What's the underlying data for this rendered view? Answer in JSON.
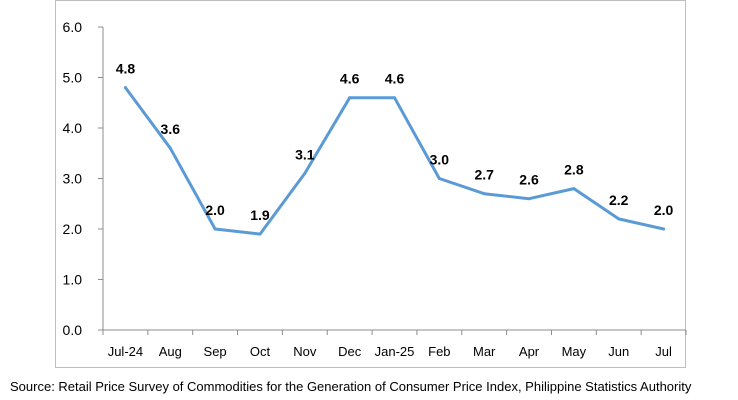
{
  "chart_data": {
    "type": "line",
    "title": "",
    "xlabel": "",
    "ylabel": "",
    "categories": [
      "Jul-24",
      "Aug",
      "Sep",
      "Oct",
      "Nov",
      "Dec",
      "Jan-25",
      "Feb",
      "Mar",
      "Apr",
      "May",
      "Jun",
      "Jul"
    ],
    "values": [
      4.8,
      3.6,
      2.0,
      1.9,
      3.1,
      4.6,
      4.6,
      3.0,
      2.7,
      2.6,
      2.8,
      2.2,
      2.0
    ],
    "data_labels": [
      "4.8",
      "3.6",
      "2.0",
      "1.9",
      "3.1",
      "4.6",
      "4.6",
      "3.0",
      "2.7",
      "2.6",
      "2.8",
      "2.2",
      "2.0"
    ],
    "ylim": [
      0,
      6
    ],
    "yticks": [
      "0.0",
      "1.0",
      "2.0",
      "3.0",
      "4.0",
      "5.0",
      "6.0"
    ],
    "grid": false,
    "legend": "none",
    "line_color": "#5b9bd5"
  },
  "source_note": "Source: Retail Price Survey of Commodities for the Generation of Consumer Price Index, Philippine Statistics Authority"
}
